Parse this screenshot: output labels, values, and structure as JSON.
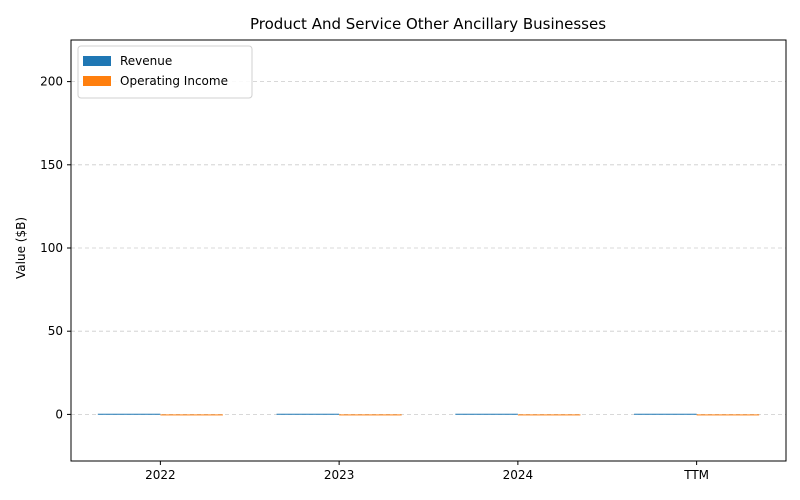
{
  "chart_data": {
    "type": "bar",
    "title": "Product And Service Other Ancillary Businesses",
    "xlabel": "",
    "ylabel": "Value ($B)",
    "categories": [
      "2022",
      "2023",
      "2024",
      "TTM"
    ],
    "series": [
      {
        "name": "Revenue",
        "color": "#1f77b4",
        "values": [
          0.4,
          0.4,
          0.4,
          0.4
        ]
      },
      {
        "name": "Operating Income",
        "color": "#ff7f0e",
        "values": [
          0,
          0,
          0,
          0
        ]
      }
    ],
    "ylim": [
      -28,
      225
    ],
    "yticks": [
      0,
      50,
      100,
      150,
      200
    ],
    "grid": true,
    "legend": "top-left"
  }
}
